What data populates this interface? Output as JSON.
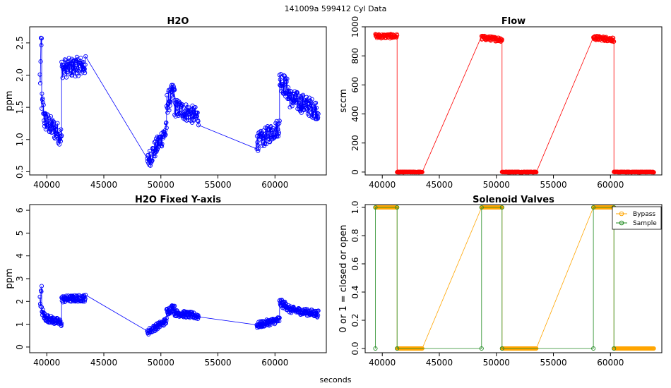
{
  "figure": {
    "suptitle": "141009a   599412   Cyl Data",
    "xlabel": "seconds"
  },
  "chart_data": [
    {
      "id": "h2o",
      "type": "scatter",
      "title": "H2O",
      "ylabel": "ppm",
      "xlim": [
        38500,
        64500
      ],
      "ylim": [
        0.45,
        2.75
      ],
      "xticks": [
        40000,
        45000,
        50000,
        55000,
        60000
      ],
      "yticks": [
        0.5,
        1.0,
        1.5,
        2.0,
        2.5
      ],
      "ytick_labels": [
        "0.5",
        "1.0",
        "1.5",
        "2.0",
        "2.5"
      ],
      "style": "points+line",
      "series": [
        {
          "color": "#0000ff",
          "segments": [
            {
              "x_start": 39400,
              "x_end": 39550,
              "y_start": 1.9,
              "y_end": 2.45,
              "spread": 0.35
            },
            {
              "x_start": 39550,
              "x_end": 39800,
              "y_start": 1.6,
              "y_end": 1.35,
              "spread": 0.18
            },
            {
              "x_start": 39800,
              "x_end": 41300,
              "y_start": 1.3,
              "y_end": 1.05,
              "spread": 0.16
            },
            {
              "x_start": 41300,
              "x_end": 43400,
              "y_start": 2.1,
              "y_end": 2.15,
              "spread": 0.15
            },
            {
              "x_start": 48800,
              "x_end": 50500,
              "y_start": 0.65,
              "y_end": 1.15,
              "spread": 0.14
            },
            {
              "x_start": 50500,
              "x_end": 51200,
              "y_start": 1.55,
              "y_end": 1.75,
              "spread": 0.17
            },
            {
              "x_start": 51200,
              "x_end": 53300,
              "y_start": 1.5,
              "y_end": 1.35,
              "spread": 0.14
            },
            {
              "x_start": 58400,
              "x_end": 60400,
              "y_start": 0.95,
              "y_end": 1.2,
              "spread": 0.14
            },
            {
              "x_start": 60400,
              "x_end": 61200,
              "y_start": 1.95,
              "y_end": 1.75,
              "spread": 0.17
            },
            {
              "x_start": 61200,
              "x_end": 63800,
              "y_start": 1.65,
              "y_end": 1.45,
              "spread": 0.15
            }
          ]
        }
      ]
    },
    {
      "id": "flow",
      "type": "scatter",
      "title": "Flow",
      "ylabel": "sccm",
      "xlim": [
        38500,
        64500
      ],
      "ylim": [
        -20,
        1000
      ],
      "xticks": [
        40000,
        45000,
        50000,
        55000,
        60000
      ],
      "yticks": [
        0,
        200,
        400,
        600,
        800,
        1000
      ],
      "ytick_labels": [
        "0",
        "200",
        "400",
        "600",
        "800",
        "1000"
      ],
      "style": "points+line",
      "series": [
        {
          "color": "#ff0000",
          "segments": [
            {
              "x_start": 39400,
              "x_end": 41300,
              "y_start": 935,
              "y_end": 935,
              "spread": 15
            },
            {
              "x_start": 41300,
              "x_end": 43500,
              "y_start": 0,
              "y_end": 0,
              "spread": 2
            },
            {
              "x_start": 48700,
              "x_end": 50500,
              "y_start": 925,
              "y_end": 912,
              "spread": 15
            },
            {
              "x_start": 50500,
              "x_end": 53500,
              "y_start": 0,
              "y_end": 0,
              "spread": 2
            },
            {
              "x_start": 58500,
              "x_end": 60300,
              "y_start": 925,
              "y_end": 912,
              "spread": 15
            },
            {
              "x_start": 60300,
              "x_end": 63800,
              "y_start": 0,
              "y_end": 0,
              "spread": 2
            }
          ]
        }
      ]
    },
    {
      "id": "h2o-fixed",
      "type": "scatter",
      "title": "H2O Fixed Y-axis",
      "ylabel": "ppm",
      "xlim": [
        38500,
        64500
      ],
      "ylim": [
        -0.25,
        6.25
      ],
      "xticks": [
        40000,
        45000,
        50000,
        55000,
        60000
      ],
      "yticks": [
        0,
        1,
        2,
        3,
        4,
        5,
        6
      ],
      "ytick_labels": [
        "0",
        "1",
        "2",
        "3",
        "4",
        "5",
        "6"
      ],
      "style": "points+line",
      "series": [
        {
          "color": "#0000ff",
          "segments": [
            {
              "x_start": 39400,
              "x_end": 39550,
              "y_start": 1.9,
              "y_end": 2.45,
              "spread": 0.35
            },
            {
              "x_start": 39550,
              "x_end": 39800,
              "y_start": 1.6,
              "y_end": 1.35,
              "spread": 0.18
            },
            {
              "x_start": 39800,
              "x_end": 41300,
              "y_start": 1.3,
              "y_end": 1.05,
              "spread": 0.16
            },
            {
              "x_start": 41300,
              "x_end": 43400,
              "y_start": 2.1,
              "y_end": 2.15,
              "spread": 0.15
            },
            {
              "x_start": 48800,
              "x_end": 50500,
              "y_start": 0.65,
              "y_end": 1.15,
              "spread": 0.14
            },
            {
              "x_start": 50500,
              "x_end": 51200,
              "y_start": 1.55,
              "y_end": 1.75,
              "spread": 0.17
            },
            {
              "x_start": 51200,
              "x_end": 53300,
              "y_start": 1.5,
              "y_end": 1.35,
              "spread": 0.14
            },
            {
              "x_start": 58400,
              "x_end": 60400,
              "y_start": 0.95,
              "y_end": 1.2,
              "spread": 0.14
            },
            {
              "x_start": 60400,
              "x_end": 61200,
              "y_start": 1.95,
              "y_end": 1.75,
              "spread": 0.17
            },
            {
              "x_start": 61200,
              "x_end": 63800,
              "y_start": 1.65,
              "y_end": 1.45,
              "spread": 0.15
            }
          ]
        }
      ]
    },
    {
      "id": "valves",
      "type": "line",
      "title": "Solenoid Valves",
      "ylabel": "0 or 1 = closed or open",
      "xlim": [
        38500,
        64500
      ],
      "ylim": [
        -0.03,
        1.02
      ],
      "xticks": [
        40000,
        45000,
        50000,
        55000,
        60000
      ],
      "yticks": [
        0.0,
        0.2,
        0.4,
        0.6,
        0.8,
        1.0
      ],
      "ytick_labels": [
        "0.0",
        "0.2",
        "0.4",
        "0.6",
        "0.8",
        "1.0"
      ],
      "legend": "top-right",
      "series": [
        {
          "name": "Bypass",
          "color": "#ffa500",
          "segments": [
            {
              "x_start": 39400,
              "x_end": 41300,
              "y_start": 1,
              "y_end": 1,
              "spread": 0
            },
            {
              "x_start": 41300,
              "x_end": 43500,
              "y_start": 0,
              "y_end": 0,
              "spread": 0
            },
            {
              "x_start": 48700,
              "x_end": 50500,
              "y_start": 1,
              "y_end": 1,
              "spread": 0
            },
            {
              "x_start": 50500,
              "x_end": 53500,
              "y_start": 0,
              "y_end": 0,
              "spread": 0
            },
            {
              "x_start": 58500,
              "x_end": 60300,
              "y_start": 1,
              "y_end": 1,
              "spread": 0
            },
            {
              "x_start": 60300,
              "x_end": 63800,
              "y_start": 0,
              "y_end": 0,
              "spread": 0
            }
          ]
        },
        {
          "name": "Sample",
          "color": "#228b22",
          "points": [
            [
              39400,
              0
            ],
            [
              39400,
              1
            ],
            [
              41300,
              1
            ],
            [
              41300,
              0
            ],
            [
              48700,
              0
            ],
            [
              48700,
              1
            ],
            [
              50500,
              1
            ],
            [
              50500,
              0
            ],
            [
              58500,
              0
            ],
            [
              58500,
              1
            ],
            [
              60300,
              1
            ],
            [
              60300,
              0
            ]
          ]
        }
      ]
    }
  ]
}
